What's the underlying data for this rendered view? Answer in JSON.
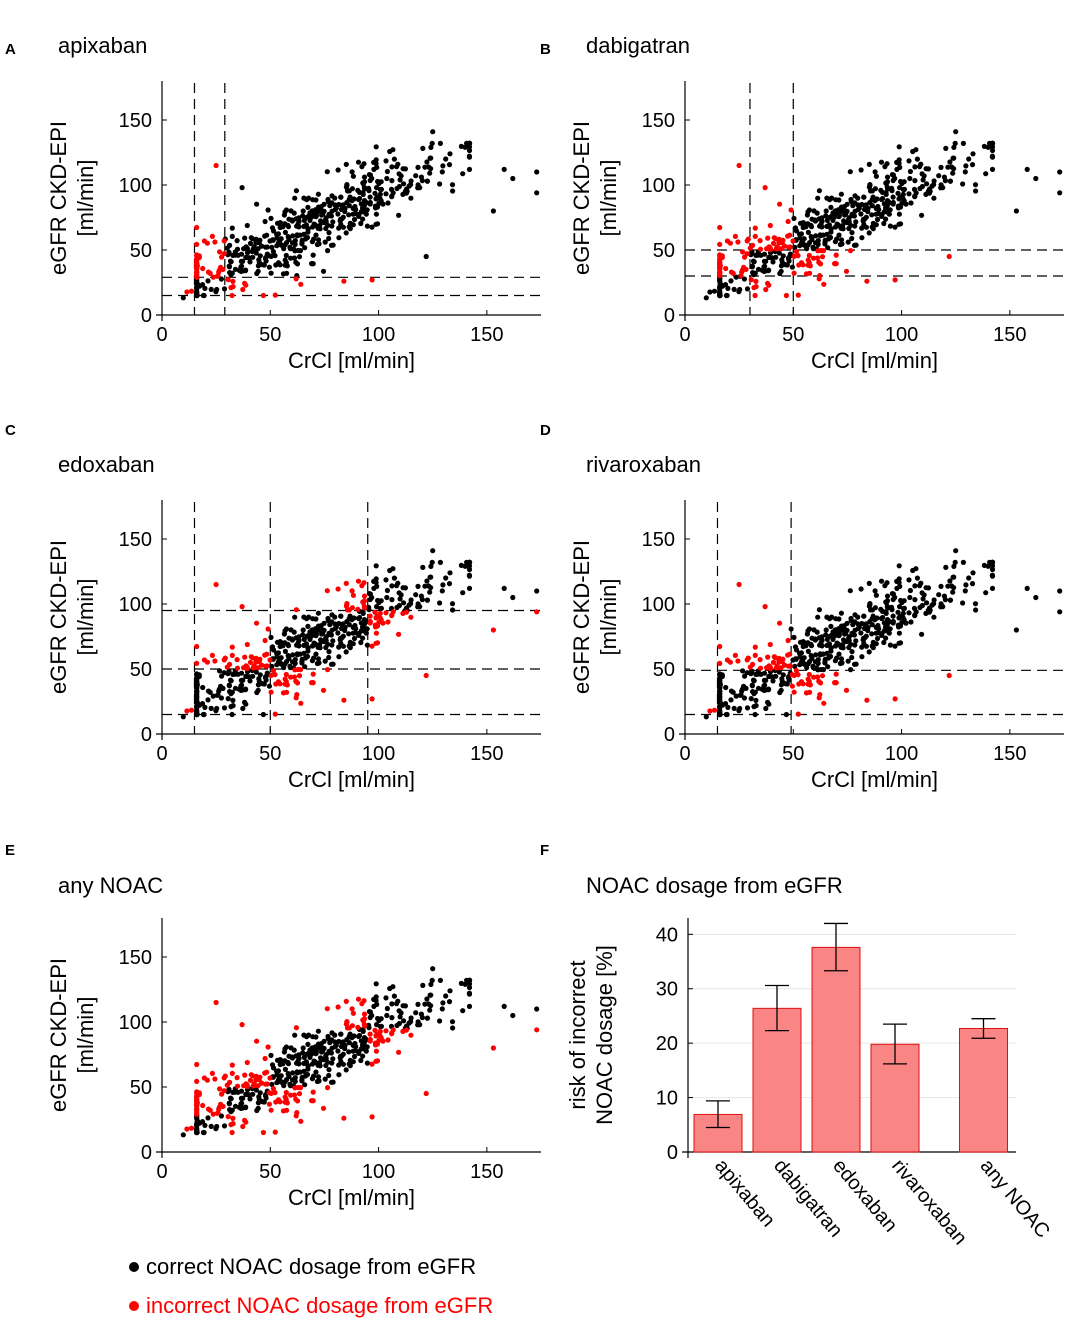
{
  "legend": {
    "correct": {
      "label": "correct NOAC dosage from eGFR",
      "color": "#000000"
    },
    "incorrect": {
      "label": "incorrect NOAC dosage from eGFR",
      "color": "#ff0000"
    }
  },
  "colors": {
    "bar_fill": "#f98585",
    "bar_stroke": "#e01010",
    "dashed": "#000000",
    "grid": "#e6e6e6"
  },
  "chart_data": [
    {
      "panel": "A",
      "type": "scatter",
      "title": "apixaban",
      "xlabel": "CrCl [ml/min]",
      "ylabel": [
        "eGFR CKD-EPI",
        "[ml/min]"
      ],
      "xlim": [
        0,
        175
      ],
      "ylim": [
        0,
        180
      ],
      "xticks": [
        0,
        50,
        100,
        150
      ],
      "yticks": [
        0,
        50,
        100,
        150
      ],
      "thresholds_x": [
        15,
        29
      ],
      "thresholds_y": [
        15,
        29
      ]
    },
    {
      "panel": "B",
      "type": "scatter",
      "title": "dabigatran",
      "xlabel": "CrCl [ml/min]",
      "ylabel": [
        "eGFR CKD-EPI",
        "[ml/min]"
      ],
      "xlim": [
        0,
        175
      ],
      "ylim": [
        0,
        180
      ],
      "xticks": [
        0,
        50,
        100,
        150
      ],
      "yticks": [
        0,
        50,
        100,
        150
      ],
      "thresholds_x": [
        30,
        50
      ],
      "thresholds_y": [
        30,
        50
      ]
    },
    {
      "panel": "C",
      "type": "scatter",
      "title": "edoxaban",
      "xlabel": "CrCl [ml/min]",
      "ylabel": [
        "eGFR CKD-EPI",
        "[ml/min]"
      ],
      "xlim": [
        0,
        175
      ],
      "ylim": [
        0,
        180
      ],
      "xticks": [
        0,
        50,
        100,
        150
      ],
      "yticks": [
        0,
        50,
        100,
        150
      ],
      "thresholds_x": [
        15,
        50,
        95
      ],
      "thresholds_y": [
        15,
        50,
        95
      ]
    },
    {
      "panel": "D",
      "type": "scatter",
      "title": "rivaroxaban",
      "xlabel": "CrCl [ml/min]",
      "ylabel": [
        "eGFR CKD-EPI",
        "[ml/min]"
      ],
      "xlim": [
        0,
        175
      ],
      "ylim": [
        0,
        180
      ],
      "xticks": [
        0,
        50,
        100,
        150
      ],
      "yticks": [
        0,
        50,
        100,
        150
      ],
      "thresholds_x": [
        15,
        49
      ],
      "thresholds_y": [
        15,
        49
      ]
    },
    {
      "panel": "E",
      "type": "scatter",
      "title": "any NOAC",
      "xlabel": "CrCl [ml/min]",
      "ylabel": [
        "eGFR CKD-EPI",
        "[ml/min]"
      ],
      "xlim": [
        0,
        175
      ],
      "ylim": [
        0,
        180
      ],
      "xticks": [
        0,
        50,
        100,
        150
      ],
      "yticks": [
        0,
        50,
        100,
        150
      ],
      "thresholds_x": [],
      "thresholds_y": []
    },
    {
      "panel": "F",
      "type": "bar",
      "title": "NOAC dosage from eGFR",
      "ylabel": [
        "risk of incorrect",
        "NOAC dosage [%]"
      ],
      "ylim": [
        0,
        43
      ],
      "yticks": [
        0,
        10,
        20,
        30,
        40
      ],
      "categories": [
        "apixaban",
        "dabigatran",
        "edoxaban",
        "rivaroxaban",
        "any NOAC"
      ],
      "positions": [
        1,
        2,
        3,
        4,
        5.5
      ],
      "values": [
        6.9,
        26.4,
        37.6,
        19.8,
        22.7
      ],
      "err_low": [
        4.5,
        22.3,
        33.3,
        16.2,
        20.9
      ],
      "err_high": [
        9.4,
        30.6,
        42.0,
        23.5,
        24.5
      ]
    }
  ]
}
